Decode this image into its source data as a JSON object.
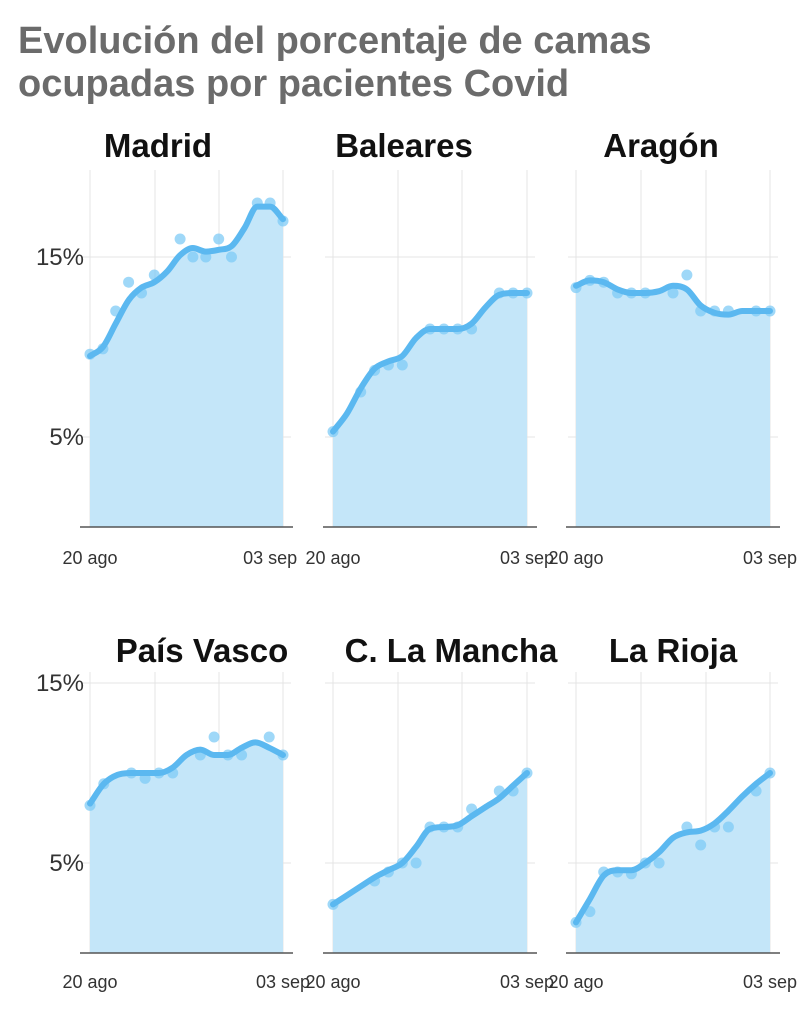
{
  "header": {
    "title_line1": "Evolución del porcentaje de camas",
    "title_line2": "ocupadas por pacientes Covid"
  },
  "colors": {
    "line": "#5bb8f0",
    "area": "#c4e6f9",
    "dots": "#7fcbf5",
    "grid": "#e4e4e4",
    "axis": "#555555",
    "title": "#6b6b6b"
  },
  "chart_data": [
    {
      "type": "area",
      "title": "Madrid",
      "ylim": [
        0,
        19.5
      ],
      "yticks": [
        {
          "value": 5,
          "label": "5%"
        },
        {
          "value": 15,
          "label": "15%"
        }
      ],
      "xticks": [
        {
          "day": 0,
          "label": "20 ago"
        },
        {
          "day": 14,
          "label": "03 sep"
        }
      ],
      "series": [
        {
          "line": [
            [
              0,
              9.5
            ],
            [
              1,
              10.0
            ],
            [
              2,
              11.3
            ],
            [
              3,
              12.6
            ],
            [
              4,
              13.3
            ],
            [
              5,
              13.6
            ],
            [
              6,
              14.2
            ],
            [
              7,
              15.1
            ],
            [
              8,
              15.5
            ],
            [
              9,
              15.3
            ],
            [
              10,
              15.4
            ],
            [
              11,
              15.6
            ],
            [
              12,
              16.6
            ],
            [
              13,
              17.8
            ],
            [
              14,
              17.8
            ],
            [
              15,
              17.1
            ]
          ],
          "points": [
            [
              0,
              9.6
            ],
            [
              1,
              9.9
            ],
            [
              2,
              12.0
            ],
            [
              3,
              13.6
            ],
            [
              4,
              13.0
            ],
            [
              5,
              14.0
            ],
            [
              7,
              16.0
            ],
            [
              8,
              15.0
            ],
            [
              9,
              15.0
            ],
            [
              10,
              16.0
            ],
            [
              11,
              15.0
            ],
            [
              13,
              18.0
            ],
            [
              14,
              18.0
            ],
            [
              15,
              17.0
            ]
          ]
        }
      ]
    },
    {
      "type": "area",
      "title": "Baleares",
      "ylim": [
        0,
        19.5
      ],
      "yticks": [
        {
          "value": 5,
          "label": ""
        },
        {
          "value": 15,
          "label": ""
        }
      ],
      "xticks": [
        {
          "day": 0,
          "label": "20 ago"
        },
        {
          "day": 14,
          "label": "03 sep"
        }
      ],
      "series": [
        {
          "line": [
            [
              0,
              5.3
            ],
            [
              1,
              6.3
            ],
            [
              2,
              7.7
            ],
            [
              3,
              8.8
            ],
            [
              4,
              9.2
            ],
            [
              5,
              9.5
            ],
            [
              6,
              10.5
            ],
            [
              7,
              11.0
            ],
            [
              8,
              11.0
            ],
            [
              9,
              11.0
            ],
            [
              10,
              11.3
            ],
            [
              11,
              12.2
            ],
            [
              12,
              12.9
            ],
            [
              13,
              13.0
            ],
            [
              14,
              13.0
            ]
          ],
          "points": [
            [
              0,
              5.3
            ],
            [
              2,
              7.5
            ],
            [
              3,
              8.7
            ],
            [
              4,
              9.0
            ],
            [
              5,
              9.0
            ],
            [
              7,
              11.0
            ],
            [
              8,
              11.0
            ],
            [
              9,
              11.0
            ],
            [
              10,
              11.0
            ],
            [
              12,
              13.0
            ],
            [
              13,
              13.0
            ],
            [
              14,
              13.0
            ]
          ]
        }
      ]
    },
    {
      "type": "area",
      "title": "Aragón",
      "ylim": [
        0,
        19.5
      ],
      "yticks": [
        {
          "value": 5,
          "label": ""
        },
        {
          "value": 15,
          "label": ""
        }
      ],
      "xticks": [
        {
          "day": 0,
          "label": "20 ago"
        },
        {
          "day": 14,
          "label": "03 sep"
        }
      ],
      "series": [
        {
          "line": [
            [
              0,
              13.4
            ],
            [
              1,
              13.7
            ],
            [
              2,
              13.6
            ],
            [
              3,
              13.2
            ],
            [
              4,
              13.0
            ],
            [
              5,
              13.0
            ],
            [
              6,
              13.1
            ],
            [
              7,
              13.4
            ],
            [
              8,
              13.2
            ],
            [
              9,
              12.3
            ],
            [
              10,
              11.9
            ],
            [
              11,
              11.8
            ],
            [
              12,
              12.0
            ],
            [
              13,
              12.0
            ],
            [
              14,
              12.0
            ]
          ],
          "points": [
            [
              0,
              13.3
            ],
            [
              1,
              13.7
            ],
            [
              2,
              13.6
            ],
            [
              3,
              13.0
            ],
            [
              4,
              13.0
            ],
            [
              5,
              13.0
            ],
            [
              7,
              13.0
            ],
            [
              8,
              14.0
            ],
            [
              9,
              12.0
            ],
            [
              10,
              12.0
            ],
            [
              11,
              12.0
            ],
            [
              13,
              12.0
            ],
            [
              14,
              12.0
            ]
          ]
        }
      ]
    },
    {
      "type": "area",
      "title": "País Vasco",
      "ylim": [
        0,
        15.4
      ],
      "yticks": [
        {
          "value": 5,
          "label": "5%"
        },
        {
          "value": 15,
          "label": "15%"
        }
      ],
      "xticks": [
        {
          "day": 0,
          "label": "20 ago"
        },
        {
          "day": 14,
          "label": "03 sep"
        }
      ],
      "series": [
        {
          "line": [
            [
              0,
              8.3
            ],
            [
              1,
              9.4
            ],
            [
              2,
              9.9
            ],
            [
              3,
              10.0
            ],
            [
              4,
              10.0
            ],
            [
              5,
              10.0
            ],
            [
              6,
              10.3
            ],
            [
              7,
              11.0
            ],
            [
              8,
              11.3
            ],
            [
              9,
              11.0
            ],
            [
              10,
              11.0
            ],
            [
              11,
              11.4
            ],
            [
              12,
              11.7
            ],
            [
              13,
              11.4
            ],
            [
              14,
              11.0
            ]
          ],
          "points": [
            [
              0,
              8.2
            ],
            [
              1,
              9.4
            ],
            [
              3,
              10.0
            ],
            [
              4,
              9.7
            ],
            [
              5,
              10.0
            ],
            [
              6,
              10.0
            ],
            [
              8,
              11.0
            ],
            [
              9,
              12.0
            ],
            [
              10,
              11.0
            ],
            [
              11,
              11.0
            ],
            [
              13,
              12.0
            ],
            [
              14,
              11.0
            ]
          ]
        }
      ]
    },
    {
      "type": "area",
      "title": "C. La Mancha",
      "ylim": [
        0,
        15.4
      ],
      "yticks": [
        {
          "value": 5,
          "label": ""
        },
        {
          "value": 15,
          "label": ""
        }
      ],
      "xticks": [
        {
          "day": 0,
          "label": "20 ago"
        },
        {
          "day": 14,
          "label": "03 sep"
        }
      ],
      "series": [
        {
          "line": [
            [
              0,
              2.7
            ],
            [
              1,
              3.2
            ],
            [
              2,
              3.7
            ],
            [
              3,
              4.2
            ],
            [
              4,
              4.6
            ],
            [
              5,
              5.0
            ],
            [
              6,
              5.9
            ],
            [
              7,
              6.9
            ],
            [
              8,
              7.0
            ],
            [
              9,
              7.1
            ],
            [
              10,
              7.6
            ],
            [
              11,
              8.1
            ],
            [
              12,
              8.6
            ],
            [
              13,
              9.3
            ],
            [
              14,
              10.0
            ]
          ],
          "points": [
            [
              0,
              2.7
            ],
            [
              3,
              4.0
            ],
            [
              4,
              4.5
            ],
            [
              5,
              5.0
            ],
            [
              6,
              5.0
            ],
            [
              7,
              7.0
            ],
            [
              8,
              7.0
            ],
            [
              9,
              7.0
            ],
            [
              10,
              8.0
            ],
            [
              12,
              9.0
            ],
            [
              13,
              9.0
            ],
            [
              14,
              10.0
            ]
          ]
        }
      ]
    },
    {
      "type": "area",
      "title": "La Rioja",
      "ylim": [
        0,
        15.4
      ],
      "yticks": [
        {
          "value": 5,
          "label": ""
        },
        {
          "value": 15,
          "label": ""
        }
      ],
      "xticks": [
        {
          "day": 0,
          "label": "20 ago"
        },
        {
          "day": 14,
          "label": "03 sep"
        }
      ],
      "series": [
        {
          "line": [
            [
              0,
              1.7
            ],
            [
              1,
              3.0
            ],
            [
              2,
              4.3
            ],
            [
              3,
              4.6
            ],
            [
              4,
              4.6
            ],
            [
              5,
              5.0
            ],
            [
              6,
              5.6
            ],
            [
              7,
              6.4
            ],
            [
              8,
              6.7
            ],
            [
              9,
              6.8
            ],
            [
              10,
              7.2
            ],
            [
              11,
              7.9
            ],
            [
              12,
              8.7
            ],
            [
              13,
              9.4
            ],
            [
              14,
              10.0
            ]
          ],
          "points": [
            [
              0,
              1.7
            ],
            [
              1,
              2.3
            ],
            [
              2,
              4.5
            ],
            [
              3,
              4.5
            ],
            [
              4,
              4.4
            ],
            [
              5,
              5.0
            ],
            [
              6,
              5.0
            ],
            [
              8,
              7.0
            ],
            [
              9,
              6.0
            ],
            [
              10,
              7.0
            ],
            [
              11,
              7.0
            ],
            [
              13,
              9.0
            ],
            [
              14,
              10.0
            ]
          ]
        }
      ]
    }
  ]
}
